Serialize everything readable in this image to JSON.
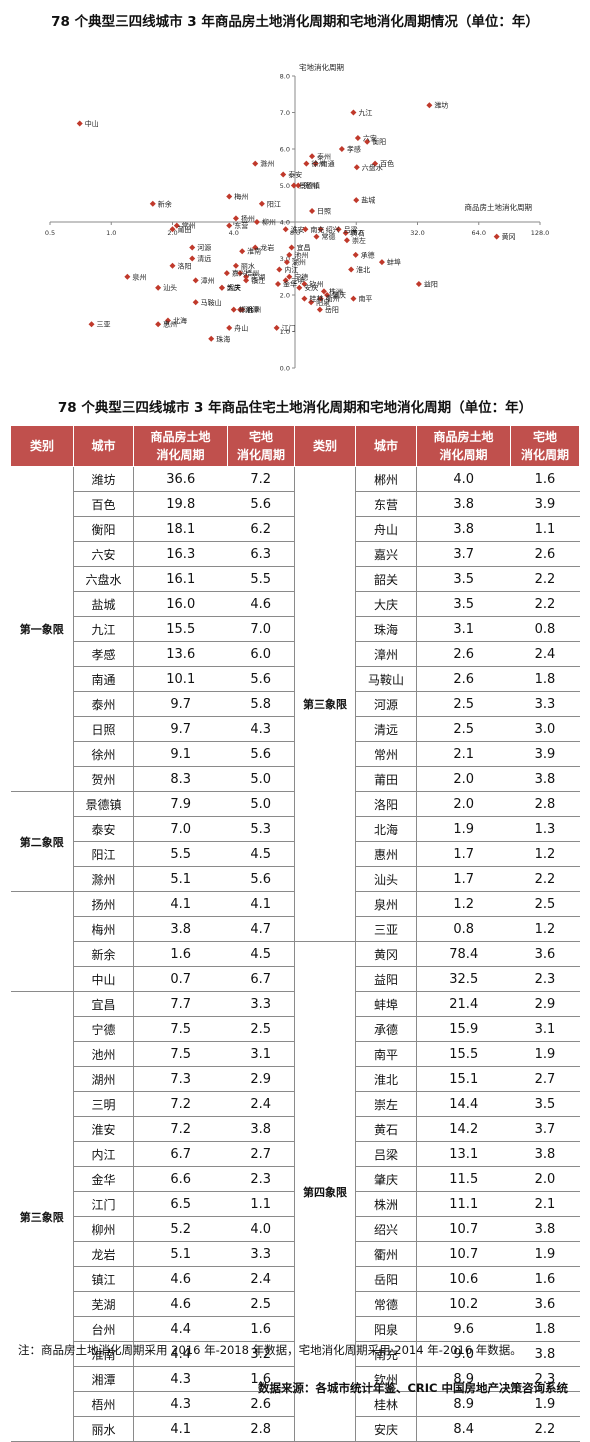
{
  "chart_title": "78 个典型三四线城市 3 年商品房土地消化周期和宅地消化周期情况（单位：年）",
  "table_title": "78 个典型三四线城市 3 年商品住宅土地消化周期和宅地消化周期（单位：年）",
  "note": "注：商品房土地消化周期采用 2016 年-2018 年数据，宅地消化周期采用 2014 年-2016 年数据。",
  "source": "数据来源：各城市统计年鉴、CRIC 中国房地产决策咨询系统",
  "table": {
    "headers": [
      "类别",
      "城市",
      "商品房土地\n消化周期",
      "宅地\n消化周期",
      "类别",
      "城市",
      "商品房土地\n消化周期",
      "宅地\n消化周期"
    ],
    "left_groups": [
      {
        "label": "第一象限",
        "rows": [
          [
            "潍坊",
            "36.6",
            "7.2"
          ],
          [
            "百色",
            "19.8",
            "5.6"
          ],
          [
            "衡阳",
            "18.1",
            "6.2"
          ],
          [
            "六安",
            "16.3",
            "6.3"
          ],
          [
            "六盘水",
            "16.1",
            "5.5"
          ],
          [
            "盐城",
            "16.0",
            "4.6"
          ],
          [
            "九江",
            "15.5",
            "7.0"
          ],
          [
            "孝感",
            "13.6",
            "6.0"
          ],
          [
            "南通",
            "10.1",
            "5.6"
          ],
          [
            "泰州",
            "9.7",
            "5.8"
          ],
          [
            "日照",
            "9.7",
            "4.3"
          ],
          [
            "徐州",
            "9.1",
            "5.6"
          ],
          [
            "贺州",
            "8.3",
            "5.0"
          ]
        ]
      },
      {
        "label": "第二象限",
        "rows": [
          [
            "景德镇",
            "7.9",
            "5.0"
          ],
          [
            "泰安",
            "7.0",
            "5.3"
          ],
          [
            "阳江",
            "5.5",
            "4.5"
          ],
          [
            "滁州",
            "5.1",
            "5.6"
          ]
        ]
      },
      {
        "label": "",
        "rows": [
          [
            "扬州",
            "4.1",
            "4.1"
          ],
          [
            "梅州",
            "3.8",
            "4.7"
          ],
          [
            "新余",
            "1.6",
            "4.5"
          ],
          [
            "中山",
            "0.7",
            "6.7"
          ]
        ]
      },
      {
        "label": "第三象限",
        "rows": [
          [
            "宜昌",
            "7.7",
            "3.3"
          ],
          [
            "宁德",
            "7.5",
            "2.5"
          ],
          [
            "池州",
            "7.5",
            "3.1"
          ],
          [
            "湖州",
            "7.3",
            "2.9"
          ],
          [
            "三明",
            "7.2",
            "2.4"
          ],
          [
            "淮安",
            "7.2",
            "3.8"
          ],
          [
            "内江",
            "6.7",
            "2.7"
          ],
          [
            "金华",
            "6.6",
            "2.3"
          ],
          [
            "江门",
            "6.5",
            "1.1"
          ],
          [
            "柳州",
            "5.2",
            "4.0"
          ],
          [
            "龙岩",
            "5.1",
            "3.3"
          ],
          [
            "镇江",
            "4.6",
            "2.4"
          ],
          [
            "芜湖",
            "4.6",
            "2.5"
          ],
          [
            "台州",
            "4.4",
            "1.6"
          ],
          [
            "淮南",
            "4.4",
            "3.2"
          ],
          [
            "湘潭",
            "4.3",
            "1.6"
          ],
          [
            "梧州",
            "4.3",
            "2.6"
          ],
          [
            "丽水",
            "4.1",
            "2.8"
          ]
        ]
      }
    ],
    "right_groups": [
      {
        "label": "第三象限",
        "rows": [
          [
            "郴州",
            "4.0",
            "1.6"
          ],
          [
            "东营",
            "3.8",
            "3.9"
          ],
          [
            "舟山",
            "3.8",
            "1.1"
          ],
          [
            "嘉兴",
            "3.7",
            "2.6"
          ],
          [
            "韶关",
            "3.5",
            "2.2"
          ],
          [
            "大庆",
            "3.5",
            "2.2"
          ],
          [
            "珠海",
            "3.1",
            "0.8"
          ],
          [
            "漳州",
            "2.6",
            "2.4"
          ],
          [
            "马鞍山",
            "2.6",
            "1.8"
          ],
          [
            "河源",
            "2.5",
            "3.3"
          ],
          [
            "清远",
            "2.5",
            "3.0"
          ],
          [
            "常州",
            "2.1",
            "3.9"
          ],
          [
            "莆田",
            "2.0",
            "3.8"
          ],
          [
            "洛阳",
            "2.0",
            "2.8"
          ],
          [
            "北海",
            "1.9",
            "1.3"
          ],
          [
            "惠州",
            "1.7",
            "1.2"
          ],
          [
            "汕头",
            "1.7",
            "2.2"
          ],
          [
            "泉州",
            "1.2",
            "2.5"
          ],
          [
            "三亚",
            "0.8",
            "1.2"
          ]
        ]
      },
      {
        "label": "第四象限",
        "rows": [
          [
            "黄冈",
            "78.4",
            "3.6"
          ],
          [
            "益阳",
            "32.5",
            "2.3"
          ],
          [
            "蚌埠",
            "21.4",
            "2.9"
          ],
          [
            "承德",
            "15.9",
            "3.1"
          ],
          [
            "南平",
            "15.5",
            "1.9"
          ],
          [
            "淮北",
            "15.1",
            "2.7"
          ],
          [
            "崇左",
            "14.4",
            "3.5"
          ],
          [
            "黄石",
            "14.2",
            "3.7"
          ],
          [
            "吕梁",
            "13.1",
            "3.8"
          ],
          [
            "肇庆",
            "11.5",
            "2.0"
          ],
          [
            "株洲",
            "11.1",
            "2.1"
          ],
          [
            "绍兴",
            "10.7",
            "3.8"
          ],
          [
            "衢州",
            "10.7",
            "1.9"
          ],
          [
            "岳阳",
            "10.6",
            "1.6"
          ],
          [
            "常德",
            "10.2",
            "3.6"
          ],
          [
            "阳泉",
            "9.6",
            "1.8"
          ],
          [
            "南充",
            "9.0",
            "3.8"
          ],
          [
            "钦州",
            "8.9",
            "2.3"
          ],
          [
            "桂林",
            "8.9",
            "1.9"
          ],
          [
            "安庆",
            "8.4",
            "2.2"
          ]
        ]
      }
    ]
  },
  "chart_data": {
    "type": "scatter",
    "title": "78 个典型三四线城市 3 年商品房土地消化周期和宅地消化周期情况（单位：年）",
    "xlabel": "商品房土地消化周期",
    "ylabel": "宅地消化周期",
    "x_scale": "log2",
    "xlim": [
      0.5,
      128.0
    ],
    "ylim": [
      0.0,
      8.0
    ],
    "x_ticks": [
      "0.5",
      "1.0",
      "2.0",
      "4.0",
      "8.0",
      "16.0",
      "32.0",
      "64.0",
      "128.0"
    ],
    "y_ticks": [
      "0.0",
      "1.0",
      "2.0",
      "3.0",
      "4.0",
      "5.0",
      "6.0",
      "7.0",
      "8.0"
    ],
    "cross_x": 8.0,
    "cross_y": 4.0,
    "marker_color": "#c0392b",
    "points": [
      {
        "label": "潍坊",
        "x": 36.6,
        "y": 7.2
      },
      {
        "label": "百色",
        "x": 19.8,
        "y": 5.6
      },
      {
        "label": "衡阳",
        "x": 18.1,
        "y": 6.2
      },
      {
        "label": "六安",
        "x": 16.3,
        "y": 6.3
      },
      {
        "label": "六盘水",
        "x": 16.1,
        "y": 5.5
      },
      {
        "label": "盐城",
        "x": 16.0,
        "y": 4.6
      },
      {
        "label": "九江",
        "x": 15.5,
        "y": 7.0
      },
      {
        "label": "孝感",
        "x": 13.6,
        "y": 6.0
      },
      {
        "label": "南通",
        "x": 10.1,
        "y": 5.6
      },
      {
        "label": "泰州",
        "x": 9.7,
        "y": 5.8
      },
      {
        "label": "日照",
        "x": 9.7,
        "y": 4.3
      },
      {
        "label": "徐州",
        "x": 9.1,
        "y": 5.6
      },
      {
        "label": "贺州",
        "x": 8.3,
        "y": 5.0
      },
      {
        "label": "景德镇",
        "x": 7.9,
        "y": 5.0
      },
      {
        "label": "泰安",
        "x": 7.0,
        "y": 5.3
      },
      {
        "label": "阳江",
        "x": 5.5,
        "y": 4.5
      },
      {
        "label": "滁州",
        "x": 5.1,
        "y": 5.6
      },
      {
        "label": "扬州",
        "x": 4.1,
        "y": 4.1
      },
      {
        "label": "梅州",
        "x": 3.8,
        "y": 4.7
      },
      {
        "label": "新余",
        "x": 1.6,
        "y": 4.5
      },
      {
        "label": "中山",
        "x": 0.7,
        "y": 6.7
      },
      {
        "label": "宜昌",
        "x": 7.7,
        "y": 3.3
      },
      {
        "label": "宁德",
        "x": 7.5,
        "y": 2.5
      },
      {
        "label": "池州",
        "x": 7.5,
        "y": 3.1
      },
      {
        "label": "湖州",
        "x": 7.3,
        "y": 2.9
      },
      {
        "label": "三明",
        "x": 7.2,
        "y": 2.4
      },
      {
        "label": "淮安",
        "x": 7.2,
        "y": 3.8
      },
      {
        "label": "内江",
        "x": 6.7,
        "y": 2.7
      },
      {
        "label": "金华",
        "x": 6.6,
        "y": 2.3
      },
      {
        "label": "江门",
        "x": 6.5,
        "y": 1.1
      },
      {
        "label": "柳州",
        "x": 5.2,
        "y": 4.0
      },
      {
        "label": "龙岩",
        "x": 5.1,
        "y": 3.3
      },
      {
        "label": "镇江",
        "x": 4.6,
        "y": 2.4
      },
      {
        "label": "芜湖",
        "x": 4.6,
        "y": 2.5
      },
      {
        "label": "台州",
        "x": 4.4,
        "y": 1.6
      },
      {
        "label": "淮南",
        "x": 4.4,
        "y": 3.2
      },
      {
        "label": "湘潭",
        "x": 4.3,
        "y": 1.6
      },
      {
        "label": "梧州",
        "x": 4.3,
        "y": 2.6
      },
      {
        "label": "丽水",
        "x": 4.1,
        "y": 2.8
      },
      {
        "label": "郴州",
        "x": 4.0,
        "y": 1.6
      },
      {
        "label": "东营",
        "x": 3.8,
        "y": 3.9
      },
      {
        "label": "舟山",
        "x": 3.8,
        "y": 1.1
      },
      {
        "label": "嘉兴",
        "x": 3.7,
        "y": 2.6
      },
      {
        "label": "韶关",
        "x": 3.5,
        "y": 2.2
      },
      {
        "label": "大庆",
        "x": 3.5,
        "y": 2.2
      },
      {
        "label": "珠海",
        "x": 3.1,
        "y": 0.8
      },
      {
        "label": "漳州",
        "x": 2.6,
        "y": 2.4
      },
      {
        "label": "马鞍山",
        "x": 2.6,
        "y": 1.8
      },
      {
        "label": "河源",
        "x": 2.5,
        "y": 3.3
      },
      {
        "label": "清远",
        "x": 2.5,
        "y": 3.0
      },
      {
        "label": "常州",
        "x": 2.1,
        "y": 3.9
      },
      {
        "label": "莆田",
        "x": 2.0,
        "y": 3.8
      },
      {
        "label": "洛阳",
        "x": 2.0,
        "y": 2.8
      },
      {
        "label": "北海",
        "x": 1.9,
        "y": 1.3
      },
      {
        "label": "惠州",
        "x": 1.7,
        "y": 1.2
      },
      {
        "label": "汕头",
        "x": 1.7,
        "y": 2.2
      },
      {
        "label": "泉州",
        "x": 1.2,
        "y": 2.5
      },
      {
        "label": "三亚",
        "x": 0.8,
        "y": 1.2
      },
      {
        "label": "黄冈",
        "x": 78.4,
        "y": 3.6
      },
      {
        "label": "益阳",
        "x": 32.5,
        "y": 2.3
      },
      {
        "label": "蚌埠",
        "x": 21.4,
        "y": 2.9
      },
      {
        "label": "承德",
        "x": 15.9,
        "y": 3.1
      },
      {
        "label": "南平",
        "x": 15.5,
        "y": 1.9
      },
      {
        "label": "淮北",
        "x": 15.1,
        "y": 2.7
      },
      {
        "label": "崇左",
        "x": 14.4,
        "y": 3.5
      },
      {
        "label": "黄石",
        "x": 14.2,
        "y": 3.7
      },
      {
        "label": "吕梁",
        "x": 13.1,
        "y": 3.8
      },
      {
        "label": "肇庆",
        "x": 11.5,
        "y": 2.0
      },
      {
        "label": "株洲",
        "x": 11.1,
        "y": 2.1
      },
      {
        "label": "绍兴",
        "x": 10.7,
        "y": 3.8
      },
      {
        "label": "衢州",
        "x": 10.7,
        "y": 1.9
      },
      {
        "label": "岳阳",
        "x": 10.6,
        "y": 1.6
      },
      {
        "label": "常德",
        "x": 10.2,
        "y": 3.6
      },
      {
        "label": "阳泉",
        "x": 9.6,
        "y": 1.8
      },
      {
        "label": "南充",
        "x": 9.0,
        "y": 3.8
      },
      {
        "label": "钦州",
        "x": 8.9,
        "y": 2.3
      },
      {
        "label": "桂林",
        "x": 8.9,
        "y": 1.9
      },
      {
        "label": "安庆",
        "x": 8.4,
        "y": 2.2
      }
    ]
  }
}
